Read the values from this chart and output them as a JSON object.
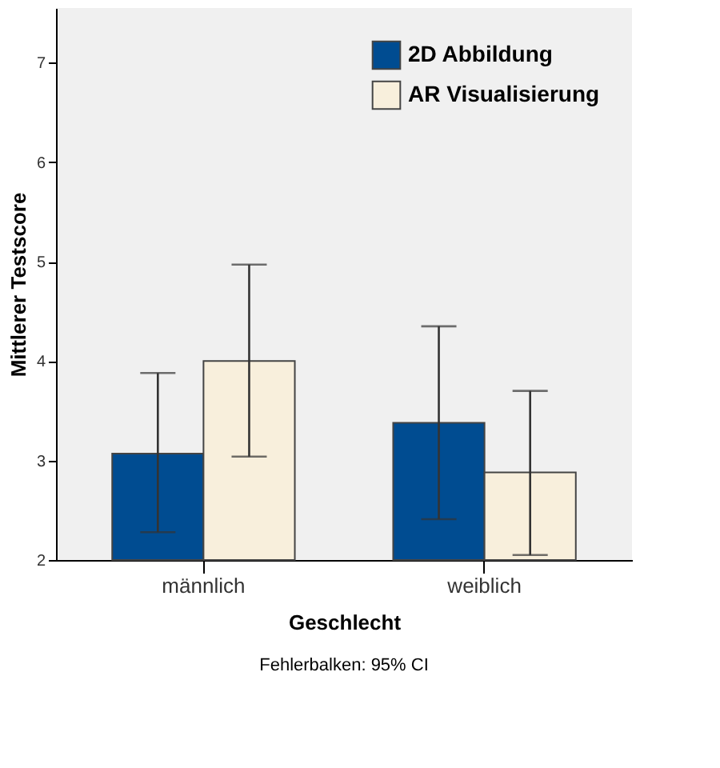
{
  "chart_data": {
    "type": "bar",
    "xlabel": "Geschlecht",
    "ylabel": "Mittlerer Testscore",
    "categories": [
      "männlich",
      "weiblich"
    ],
    "series": [
      {
        "name": "2D Abbildung",
        "color": "#004c91",
        "values": [
          3.07,
          3.38
        ],
        "errors": [
          [
            2.28,
            3.88
          ],
          [
            2.41,
            4.35
          ]
        ]
      },
      {
        "name": "AR Visualisierung",
        "color": "#f8efdc",
        "values": [
          4.0,
          2.88
        ],
        "errors": [
          [
            3.04,
            4.97
          ],
          [
            2.05,
            3.7
          ]
        ]
      }
    ],
    "ylim": [
      2,
      7.55
    ],
    "yticks": [
      2,
      3,
      4,
      5,
      6,
      7
    ],
    "grid": false,
    "legend": "top right",
    "annotations": [
      "Fehlerbalken: 95% CI"
    ]
  }
}
